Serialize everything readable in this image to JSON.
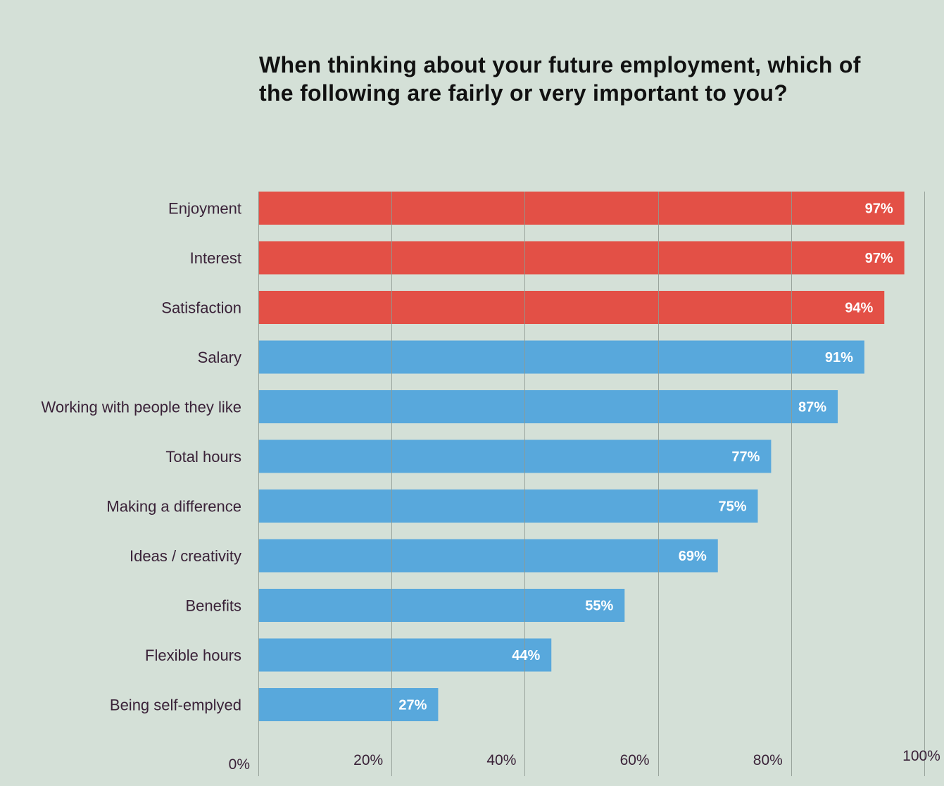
{
  "chart_data": {
    "type": "bar",
    "orientation": "horizontal",
    "title": "When thinking about your future employment, which of the following are fairly or very important to you?",
    "categories": [
      "Enjoyment",
      "Interest",
      "Satisfaction",
      "Salary",
      "Working with people they like",
      "Total hours",
      "Making a difference",
      "Ideas / creativity",
      "Benefits",
      "Flexible hours",
      "Being self-emplyed"
    ],
    "values": [
      97,
      97,
      94,
      91,
      87,
      77,
      75,
      69,
      55,
      44,
      27
    ],
    "value_labels": [
      "97%",
      "97%",
      "94%",
      "91%",
      "87%",
      "77%",
      "75%",
      "69%",
      "55%",
      "44%",
      "27%"
    ],
    "highlight_count": 3,
    "xlim": [
      0,
      100
    ],
    "x_ticks": [
      0,
      20,
      40,
      60,
      80,
      100
    ],
    "x_tick_labels": [
      "0%",
      "20%",
      "40%",
      "60%",
      "80%",
      "100%"
    ],
    "grid": true,
    "xlabel": "",
    "ylabel": ""
  },
  "colors": {
    "background": "#d4e0d7",
    "highlight_bar": "#e35046",
    "bar": "#58a8dc",
    "grid": "#8f9a92",
    "label_text": "#3a2238",
    "title_text": "#111111",
    "value_text": "#ffffff"
  }
}
